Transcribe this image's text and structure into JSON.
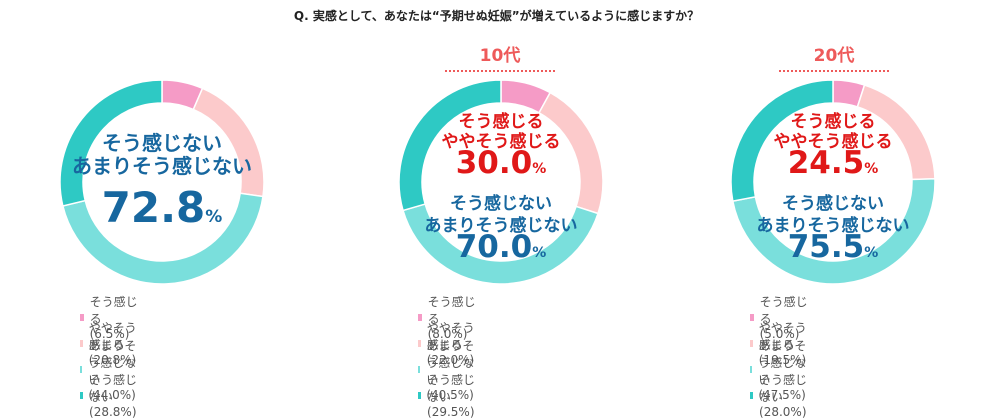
{
  "question": "Q. 実感として、あなたは“予期せぬ妊娠”が増えているように感じますか？",
  "colors": {
    "そう感じる": "#f59bc6",
    "ややそう感じる": "#fccacb",
    "あまりそう感じない": "#7adfdc",
    "そう感じない": "#2ec9c4",
    "agree_text": "#e01818",
    "disagree_text": "#17679f"
  },
  "chart_data": [
    {
      "type": "pie",
      "title": "",
      "categories": [
        "そう感じる",
        "ややそう感じる",
        "あまりそう感じない",
        "そう感じない"
      ],
      "values": [
        6.5,
        20.8,
        44.0,
        28.8
      ],
      "legend": [
        "そう感じる(6.5%)",
        "ややそう感じる(20.8%)",
        "あまりそう感じない(44.0%)",
        "そう感じない(28.8%)"
      ],
      "center": {
        "disagree_line1": "そう感じない",
        "disagree_line2": "あまりそう感じない",
        "disagree_value": "72.8",
        "unit": "%"
      }
    },
    {
      "type": "pie",
      "title": "10代",
      "categories": [
        "そう感じる",
        "ややそう感じる",
        "あまりそう感じない",
        "そう感じない"
      ],
      "values": [
        8.0,
        22.0,
        40.5,
        29.5
      ],
      "legend": [
        "そう感じる(8.0%)",
        "ややそう感じる(22.0%)",
        "あまりそう感じない(40.5%)",
        "そう感じない(29.5%)"
      ],
      "center": {
        "agree_line1": "そう感じる",
        "agree_line2": "ややそう感じる",
        "agree_value": "30.0",
        "disagree_line1": "そう感じない",
        "disagree_line2": "あまりそう感じない",
        "disagree_value": "70.0",
        "unit": "%"
      }
    },
    {
      "type": "pie",
      "title": "20代",
      "categories": [
        "そう感じる",
        "ややそう感じる",
        "あまりそう感じない",
        "そう感じない"
      ],
      "values": [
        5.0,
        19.5,
        47.5,
        28.0
      ],
      "legend": [
        "そう感じる(5.0%)",
        "ややそう感じる(19.5%)",
        "あまりそう感じない(47.5%)",
        "そう感じない(28.0%)"
      ],
      "center": {
        "agree_line1": "そう感じる",
        "agree_line2": "ややそう感じる",
        "agree_value": "24.5",
        "disagree_line1": "そう感じない",
        "disagree_line2": "あまりそう感じない",
        "disagree_value": "75.5",
        "unit": "%"
      }
    }
  ]
}
